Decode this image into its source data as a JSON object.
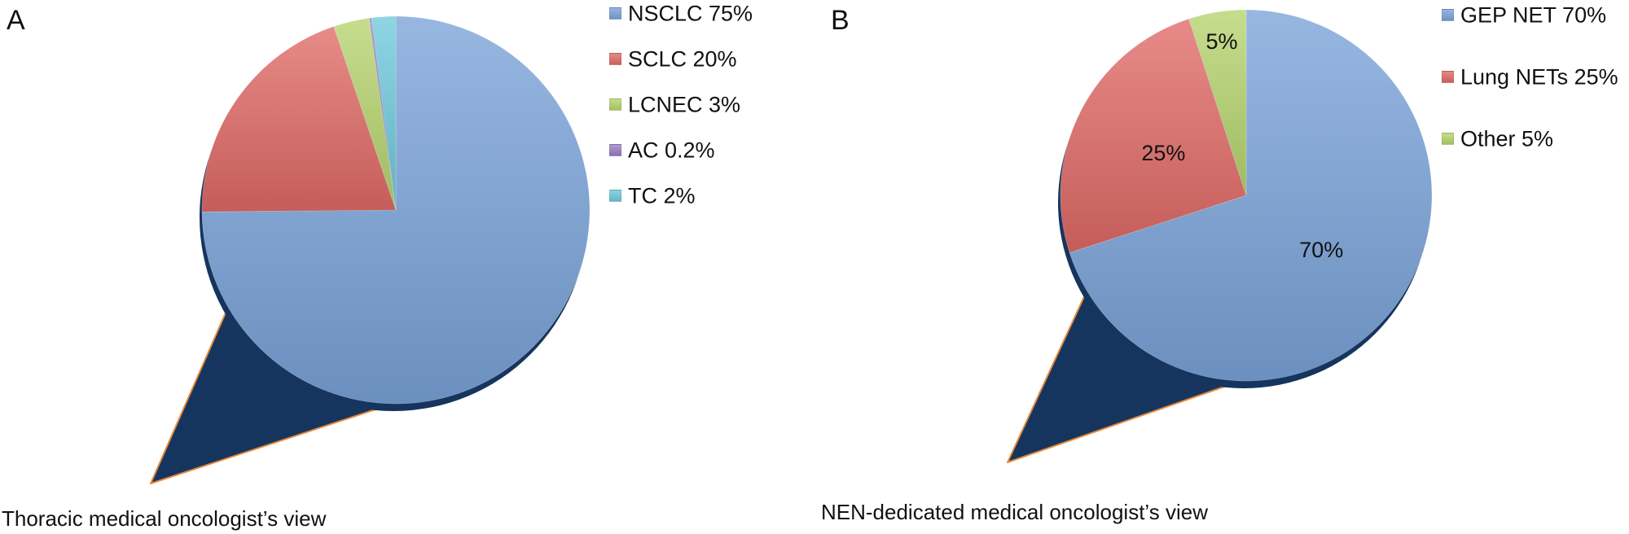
{
  "panels": [
    {
      "letter": "A",
      "caption": "Thoracic medical oncologist’s view",
      "chart_data": {
        "type": "pie",
        "categories": [
          "NSCLC",
          "SCLC",
          "LCNEC",
          "AC",
          "TC"
        ],
        "values": [
          75,
          20,
          3,
          0.2,
          2
        ],
        "legend": [
          "NSCLC 75%",
          "SCLC 20%",
          "LCNEC 3%",
          "AC 0.2%",
          "TC 2%"
        ],
        "data_labels": [],
        "colors": [
          "#7aa3d9",
          "#e06a66",
          "#b6d46e",
          "#9a7fc7",
          "#6fc9dc"
        ],
        "legend_position": "top-right",
        "callout_color": "#16355e"
      }
    },
    {
      "letter": "B",
      "caption": "NEN-dedicated medical oncologist’s view",
      "chart_data": {
        "type": "pie",
        "categories": [
          "GEP NET",
          "Lung NETs",
          "Other"
        ],
        "values": [
          70,
          25,
          5
        ],
        "legend": [
          "GEP NET 70%",
          "Lung NETs 25%",
          "Other 5%"
        ],
        "data_labels": [
          "70%",
          "25%",
          "5%"
        ],
        "colors": [
          "#7aa3d9",
          "#e06a66",
          "#b6d46e"
        ],
        "legend_position": "top-right",
        "callout_color": "#16355e"
      }
    }
  ]
}
